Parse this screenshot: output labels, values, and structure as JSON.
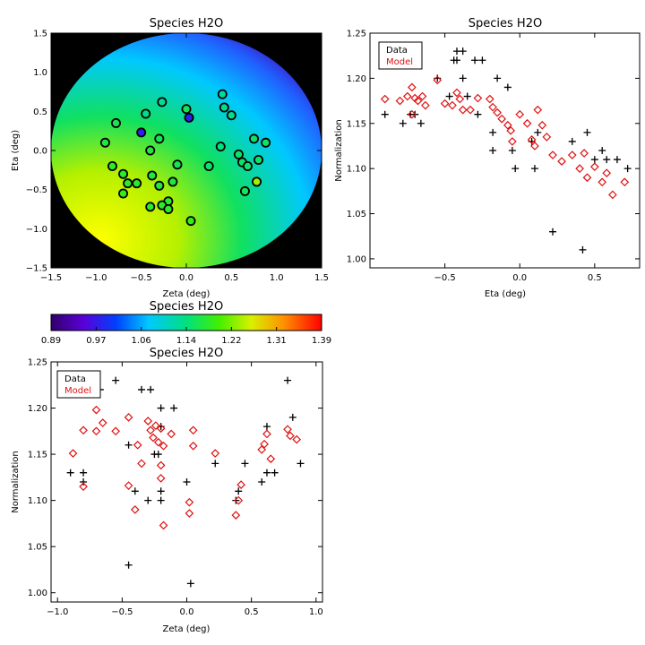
{
  "colors": {
    "data": "#000000",
    "model": "#e01010",
    "background_disk": "#000000"
  },
  "chart_data": [
    {
      "id": "map",
      "type": "heatmap",
      "title": "Species H2O",
      "xlabel": "Zeta (deg)",
      "ylabel": "Eta (deg)",
      "xlim": [
        -1.5,
        1.5
      ],
      "ylim": [
        -1.5,
        1.5
      ],
      "xticks": [
        -1.5,
        -1.0,
        -0.5,
        0.0,
        0.5,
        1.0,
        1.5
      ],
      "xtick_labels": [
        "−1.5",
        "−1.0",
        "−0.5",
        "0.0",
        "0.5",
        "1.0",
        "1.5"
      ],
      "yticks": [
        -1.5,
        -1.0,
        -0.5,
        0.0,
        0.5,
        1.0,
        1.5
      ],
      "ytick_labels": [
        "−1.5",
        "−1.0",
        "−0.5",
        "0.0",
        "0.5",
        "1.0",
        "1.5"
      ],
      "field_radius": 1.5,
      "points": [
        {
          "zeta": 0.0,
          "eta": 0.53,
          "value": 1.16
        },
        {
          "zeta": 0.03,
          "eta": 0.42,
          "value": 0.98
        },
        {
          "zeta": -0.5,
          "eta": 0.23,
          "value": 0.98
        },
        {
          "zeta": -0.27,
          "eta": 0.62,
          "value": 1.13
        },
        {
          "zeta": -0.45,
          "eta": 0.47,
          "value": 1.13
        },
        {
          "zeta": -0.78,
          "eta": 0.35,
          "value": 1.16
        },
        {
          "zeta": -0.3,
          "eta": 0.15,
          "value": 1.16
        },
        {
          "zeta": -0.4,
          "eta": 0.0,
          "value": 1.17
        },
        {
          "zeta": -0.9,
          "eta": 0.1,
          "value": 1.17
        },
        {
          "zeta": -0.82,
          "eta": -0.2,
          "value": 1.18
        },
        {
          "zeta": -0.7,
          "eta": -0.3,
          "value": 1.18
        },
        {
          "zeta": -0.65,
          "eta": -0.42,
          "value": 1.18
        },
        {
          "zeta": -0.55,
          "eta": -0.42,
          "value": 1.18
        },
        {
          "zeta": -0.7,
          "eta": -0.55,
          "value": 1.19
        },
        {
          "zeta": -0.38,
          "eta": -0.32,
          "value": 1.17
        },
        {
          "zeta": -0.3,
          "eta": -0.45,
          "value": 1.17
        },
        {
          "zeta": -0.15,
          "eta": -0.4,
          "value": 1.17
        },
        {
          "zeta": -0.1,
          "eta": -0.18,
          "value": 1.16
        },
        {
          "zeta": -0.2,
          "eta": -0.65,
          "value": 1.18
        },
        {
          "zeta": -0.27,
          "eta": -0.7,
          "value": 1.18
        },
        {
          "zeta": -0.2,
          "eta": -0.75,
          "value": 1.18
        },
        {
          "zeta": -0.4,
          "eta": -0.72,
          "value": 1.18
        },
        {
          "zeta": 0.05,
          "eta": -0.9,
          "value": 1.19
        },
        {
          "zeta": 0.4,
          "eta": 0.72,
          "value": 1.12
        },
        {
          "zeta": 0.42,
          "eta": 0.55,
          "value": 1.13
        },
        {
          "zeta": 0.5,
          "eta": 0.45,
          "value": 1.13
        },
        {
          "zeta": 0.38,
          "eta": 0.05,
          "value": 1.14
        },
        {
          "zeta": 0.25,
          "eta": -0.2,
          "value": 1.15
        },
        {
          "zeta": 0.58,
          "eta": -0.05,
          "value": 1.15
        },
        {
          "zeta": 0.62,
          "eta": -0.15,
          "value": 1.15
        },
        {
          "zeta": 0.65,
          "eta": -0.52,
          "value": 1.16
        },
        {
          "zeta": 0.68,
          "eta": -0.2,
          "value": 1.15
        },
        {
          "zeta": 0.78,
          "eta": -0.4,
          "value": 1.24
        },
        {
          "zeta": 0.8,
          "eta": -0.12,
          "value": 1.15
        },
        {
          "zeta": 0.88,
          "eta": 0.1,
          "value": 1.15
        },
        {
          "zeta": 0.75,
          "eta": 0.15,
          "value": 1.15
        }
      ]
    },
    {
      "id": "colorbar",
      "type": "colorbar",
      "title": "Species H2O",
      "range": [
        0.89,
        1.39
      ],
      "tick_labels": [
        "0.89",
        "0.97",
        "1.06",
        "1.14",
        "1.22",
        "1.31",
        "1.39"
      ]
    },
    {
      "id": "vs_eta",
      "type": "scatter",
      "title": "Species H2O",
      "xlabel": "Eta (deg)",
      "ylabel": "Normalization",
      "xlim": [
        -1.0,
        0.8
      ],
      "ylim": [
        0.99,
        1.25
      ],
      "xticks": [
        -0.5,
        0.0,
        0.5
      ],
      "xtick_labels": [
        "−0.5",
        "0.0",
        "0.5"
      ],
      "yticks": [
        1.0,
        1.05,
        1.1,
        1.15,
        1.2,
        1.25
      ],
      "ytick_labels": [
        "1.00",
        "1.05",
        "1.10",
        "1.15",
        "1.20",
        "1.25"
      ],
      "legend": [
        "Data",
        "Model"
      ],
      "legend_position": "top-left",
      "series": [
        {
          "name": "Data",
          "marker": "plus",
          "points": [
            {
              "x": -0.9,
              "y": 1.16
            },
            {
              "x": -0.78,
              "y": 1.15
            },
            {
              "x": -0.7,
              "y": 1.16
            },
            {
              "x": -0.66,
              "y": 1.15
            },
            {
              "x": -0.73,
              "y": 1.16
            },
            {
              "x": -0.55,
              "y": 1.2
            },
            {
              "x": -0.47,
              "y": 1.18
            },
            {
              "x": -0.44,
              "y": 1.22
            },
            {
              "x": -0.42,
              "y": 1.23
            },
            {
              "x": -0.38,
              "y": 1.23
            },
            {
              "x": -0.42,
              "y": 1.22
            },
            {
              "x": -0.3,
              "y": 1.22
            },
            {
              "x": -0.25,
              "y": 1.22
            },
            {
              "x": -0.38,
              "y": 1.2
            },
            {
              "x": -0.35,
              "y": 1.18
            },
            {
              "x": -0.28,
              "y": 1.16
            },
            {
              "x": -0.18,
              "y": 1.14
            },
            {
              "x": -0.18,
              "y": 1.12
            },
            {
              "x": -0.15,
              "y": 1.2
            },
            {
              "x": -0.08,
              "y": 1.19
            },
            {
              "x": -0.05,
              "y": 1.12
            },
            {
              "x": -0.03,
              "y": 1.1
            },
            {
              "x": 0.08,
              "y": 1.13
            },
            {
              "x": 0.1,
              "y": 1.1
            },
            {
              "x": 0.12,
              "y": 1.14
            },
            {
              "x": 0.22,
              "y": 1.03
            },
            {
              "x": 0.35,
              "y": 1.13
            },
            {
              "x": 0.42,
              "y": 1.01
            },
            {
              "x": 0.45,
              "y": 1.14
            },
            {
              "x": 0.5,
              "y": 1.11
            },
            {
              "x": 0.55,
              "y": 1.12
            },
            {
              "x": 0.58,
              "y": 1.11
            },
            {
              "x": 0.65,
              "y": 1.11
            },
            {
              "x": 0.72,
              "y": 1.1
            }
          ]
        },
        {
          "name": "Model",
          "marker": "diamond",
          "points": [
            {
              "x": -0.9,
              "y": 1.177
            },
            {
              "x": -0.8,
              "y": 1.175
            },
            {
              "x": -0.7,
              "y": 1.178
            },
            {
              "x": -0.75,
              "y": 1.18
            },
            {
              "x": -0.72,
              "y": 1.19
            },
            {
              "x": -0.65,
              "y": 1.18
            },
            {
              "x": -0.68,
              "y": 1.175
            },
            {
              "x": -0.72,
              "y": 1.16
            },
            {
              "x": -0.63,
              "y": 1.17
            },
            {
              "x": -0.55,
              "y": 1.198
            },
            {
              "x": -0.5,
              "y": 1.172
            },
            {
              "x": -0.45,
              "y": 1.17
            },
            {
              "x": -0.42,
              "y": 1.184
            },
            {
              "x": -0.4,
              "y": 1.177
            },
            {
              "x": -0.38,
              "y": 1.165
            },
            {
              "x": -0.33,
              "y": 1.165
            },
            {
              "x": -0.28,
              "y": 1.178
            },
            {
              "x": -0.2,
              "y": 1.177
            },
            {
              "x": -0.18,
              "y": 1.168
            },
            {
              "x": -0.15,
              "y": 1.162
            },
            {
              "x": -0.12,
              "y": 1.155
            },
            {
              "x": -0.08,
              "y": 1.148
            },
            {
              "x": -0.06,
              "y": 1.142
            },
            {
              "x": -0.05,
              "y": 1.13
            },
            {
              "x": 0.0,
              "y": 1.16
            },
            {
              "x": 0.05,
              "y": 1.15
            },
            {
              "x": 0.08,
              "y": 1.132
            },
            {
              "x": 0.1,
              "y": 1.125
            },
            {
              "x": 0.12,
              "y": 1.165
            },
            {
              "x": 0.15,
              "y": 1.148
            },
            {
              "x": 0.18,
              "y": 1.135
            },
            {
              "x": 0.22,
              "y": 1.115
            },
            {
              "x": 0.28,
              "y": 1.108
            },
            {
              "x": 0.35,
              "y": 1.115
            },
            {
              "x": 0.4,
              "y": 1.1
            },
            {
              "x": 0.43,
              "y": 1.117
            },
            {
              "x": 0.45,
              "y": 1.09
            },
            {
              "x": 0.5,
              "y": 1.102
            },
            {
              "x": 0.55,
              "y": 1.085
            },
            {
              "x": 0.58,
              "y": 1.095
            },
            {
              "x": 0.62,
              "y": 1.071
            },
            {
              "x": 0.7,
              "y": 1.085
            }
          ]
        }
      ]
    },
    {
      "id": "vs_zeta",
      "type": "scatter",
      "title": "Species H2O",
      "xlabel": "Zeta (deg)",
      "ylabel": "Normalization",
      "xlim": [
        -1.05,
        1.05
      ],
      "ylim": [
        0.99,
        1.25
      ],
      "xticks": [
        -1.0,
        -0.5,
        0.0,
        0.5,
        1.0
      ],
      "xtick_labels": [
        "−1.0",
        "−0.5",
        "0.0",
        "0.5",
        "1.0"
      ],
      "yticks": [
        1.0,
        1.05,
        1.1,
        1.15,
        1.2,
        1.25
      ],
      "ytick_labels": [
        "1.00",
        "1.05",
        "1.10",
        "1.15",
        "1.20",
        "1.25"
      ],
      "legend": [
        "Data",
        "Model"
      ],
      "legend_position": "top-left",
      "series": [
        {
          "name": "Data",
          "marker": "plus",
          "points": [
            {
              "x": -0.9,
              "y": 1.13
            },
            {
              "x": -0.8,
              "y": 1.13
            },
            {
              "x": -0.8,
              "y": 1.12
            },
            {
              "x": -0.7,
              "y": 1.22
            },
            {
              "x": -0.67,
              "y": 1.22
            },
            {
              "x": -0.55,
              "y": 1.23
            },
            {
              "x": -0.45,
              "y": 1.16
            },
            {
              "x": -0.45,
              "y": 1.03
            },
            {
              "x": -0.4,
              "y": 1.11
            },
            {
              "x": -0.35,
              "y": 1.22
            },
            {
              "x": -0.3,
              "y": 1.1
            },
            {
              "x": -0.28,
              "y": 1.22
            },
            {
              "x": -0.25,
              "y": 1.15
            },
            {
              "x": -0.22,
              "y": 1.15
            },
            {
              "x": -0.2,
              "y": 1.2
            },
            {
              "x": -0.2,
              "y": 1.18
            },
            {
              "x": -0.2,
              "y": 1.11
            },
            {
              "x": -0.2,
              "y": 1.1
            },
            {
              "x": -0.1,
              "y": 1.2
            },
            {
              "x": 0.0,
              "y": 1.12
            },
            {
              "x": 0.03,
              "y": 1.01
            },
            {
              "x": 0.22,
              "y": 1.14
            },
            {
              "x": 0.38,
              "y": 1.1
            },
            {
              "x": 0.4,
              "y": 1.11
            },
            {
              "x": 0.45,
              "y": 1.14
            },
            {
              "x": 0.58,
              "y": 1.12
            },
            {
              "x": 0.62,
              "y": 1.13
            },
            {
              "x": 0.62,
              "y": 1.18
            },
            {
              "x": 0.68,
              "y": 1.13
            },
            {
              "x": 0.78,
              "y": 1.23
            },
            {
              "x": 0.82,
              "y": 1.19
            },
            {
              "x": 0.88,
              "y": 1.14
            }
          ]
        },
        {
          "name": "Model",
          "marker": "diamond",
          "points": [
            {
              "x": -0.88,
              "y": 1.151
            },
            {
              "x": -0.8,
              "y": 1.176
            },
            {
              "x": -0.8,
              "y": 1.115
            },
            {
              "x": -0.7,
              "y": 1.198
            },
            {
              "x": -0.7,
              "y": 1.175
            },
            {
              "x": -0.65,
              "y": 1.184
            },
            {
              "x": -0.55,
              "y": 1.175
            },
            {
              "x": -0.45,
              "y": 1.19
            },
            {
              "x": -0.45,
              "y": 1.116
            },
            {
              "x": -0.4,
              "y": 1.09
            },
            {
              "x": -0.38,
              "y": 1.16
            },
            {
              "x": -0.35,
              "y": 1.14
            },
            {
              "x": -0.3,
              "y": 1.186
            },
            {
              "x": -0.28,
              "y": 1.176
            },
            {
              "x": -0.26,
              "y": 1.168
            },
            {
              "x": -0.24,
              "y": 1.181
            },
            {
              "x": -0.22,
              "y": 1.163
            },
            {
              "x": -0.2,
              "y": 1.178
            },
            {
              "x": -0.18,
              "y": 1.159
            },
            {
              "x": -0.2,
              "y": 1.138
            },
            {
              "x": -0.2,
              "y": 1.124
            },
            {
              "x": -0.18,
              "y": 1.073
            },
            {
              "x": -0.12,
              "y": 1.172
            },
            {
              "x": 0.02,
              "y": 1.098
            },
            {
              "x": 0.02,
              "y": 1.086
            },
            {
              "x": 0.05,
              "y": 1.176
            },
            {
              "x": 0.05,
              "y": 1.159
            },
            {
              "x": 0.22,
              "y": 1.151
            },
            {
              "x": 0.38,
              "y": 1.084
            },
            {
              "x": 0.4,
              "y": 1.1
            },
            {
              "x": 0.42,
              "y": 1.117
            },
            {
              "x": 0.58,
              "y": 1.155
            },
            {
              "x": 0.6,
              "y": 1.161
            },
            {
              "x": 0.62,
              "y": 1.172
            },
            {
              "x": 0.65,
              "y": 1.145
            },
            {
              "x": 0.78,
              "y": 1.177
            },
            {
              "x": 0.8,
              "y": 1.17
            },
            {
              "x": 0.85,
              "y": 1.166
            }
          ]
        }
      ]
    }
  ]
}
